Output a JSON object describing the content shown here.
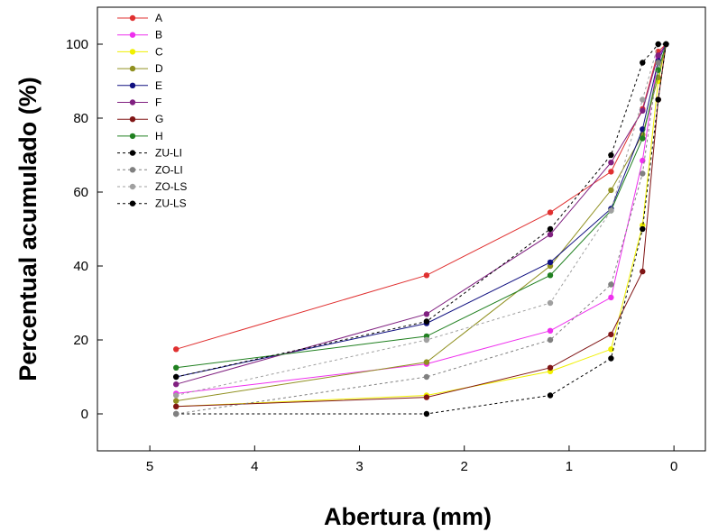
{
  "chart_data": {
    "type": "line",
    "xlabel": "Abertura (mm)",
    "ylabel": "Percentual acumulado (%)",
    "xlim": [
      5.5,
      -0.3
    ],
    "ylim": [
      -10,
      110
    ],
    "x_reversed": true,
    "x_ticks": [
      5,
      4,
      3,
      2,
      1,
      0
    ],
    "y_ticks": [
      0,
      20,
      40,
      60,
      80,
      100
    ],
    "grid": false,
    "legend_position": "top-left",
    "x": [
      4.75,
      2.36,
      1.18,
      0.6,
      0.3,
      0.15,
      0.075
    ],
    "series": [
      {
        "name": "A",
        "color": "#e03030",
        "dashed": false,
        "values": [
          17.5,
          37.5,
          54.5,
          65.5,
          82.5,
          98,
          100
        ]
      },
      {
        "name": "B",
        "color": "#ee30ee",
        "dashed": false,
        "values": [
          5.5,
          13.5,
          22.5,
          31.5,
          68.5,
          96.5,
          100
        ]
      },
      {
        "name": "C",
        "color": "#f0f000",
        "dashed": false,
        "values": [
          2,
          5,
          11.5,
          17.5,
          51,
          90,
          100
        ]
      },
      {
        "name": "D",
        "color": "#909020",
        "dashed": false,
        "values": [
          3.5,
          14,
          40,
          60.5,
          75.5,
          91,
          100
        ]
      },
      {
        "name": "E",
        "color": "#101080",
        "dashed": false,
        "values": [
          10,
          24.5,
          41,
          55.5,
          77,
          95.5,
          100
        ]
      },
      {
        "name": "F",
        "color": "#802080",
        "dashed": false,
        "values": [
          8,
          27,
          48.5,
          68,
          82,
          97,
          100
        ]
      },
      {
        "name": "G",
        "color": "#801515",
        "dashed": false,
        "values": [
          2,
          4.5,
          12.5,
          21.5,
          38.5,
          85,
          100
        ]
      },
      {
        "name": "H",
        "color": "#208020",
        "dashed": false,
        "values": [
          12.5,
          21,
          37.5,
          55,
          74.5,
          93,
          100
        ]
      },
      {
        "name": "ZU-LI",
        "color": "#000000",
        "dashed": true,
        "values": [
          0,
          0,
          5,
          15,
          50,
          85,
          100
        ]
      },
      {
        "name": "ZO-LI",
        "color": "#808080",
        "dashed": true,
        "values": [
          0,
          10,
          20,
          35,
          65,
          95,
          100
        ]
      },
      {
        "name": "ZO-LS",
        "color": "#a0a0a0",
        "dashed": true,
        "values": [
          5,
          20,
          30,
          55,
          85,
          100,
          100
        ]
      },
      {
        "name": "ZU-LS",
        "color": "#000000",
        "dashed": true,
        "values": [
          10,
          25,
          50,
          70,
          95,
          100,
          100
        ]
      }
    ]
  }
}
